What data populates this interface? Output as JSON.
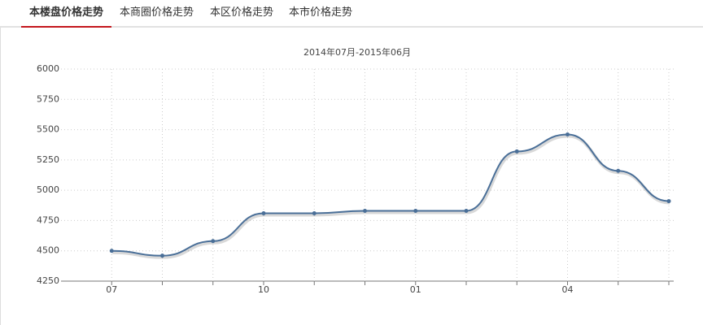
{
  "tabs": [
    "本楼盘价格走势",
    "本商圈价格走势",
    "本区价格走势",
    "本市价格走势"
  ],
  "chart_data": {
    "type": "line",
    "title": "2014年07月-2015年06月",
    "categories": [
      "07",
      null,
      null,
      "10",
      null,
      null,
      "01",
      null,
      null,
      "04",
      null,
      null
    ],
    "values": [
      4500,
      4460,
      4580,
      4810,
      4810,
      4830,
      4830,
      4830,
      5320,
      5460,
      5160,
      4910
    ],
    "color": "#4a6f98",
    "ylim": [
      4250,
      6000
    ],
    "yticks": [
      4250,
      4500,
      4750,
      5000,
      5250,
      5500,
      5750,
      6000
    ],
    "grid": true
  }
}
